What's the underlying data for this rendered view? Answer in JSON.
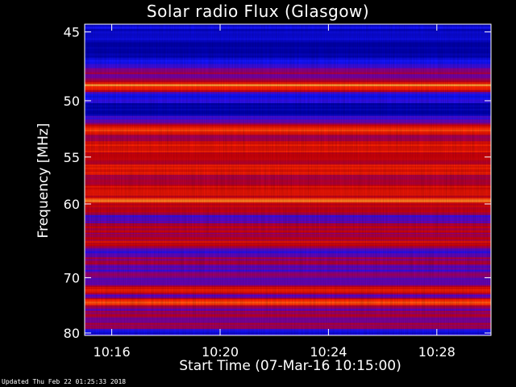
{
  "footer_text": "Updated Thu Feb 22 01:25:33 2018",
  "chart_data": {
    "type": "heatmap",
    "title": "Solar radio Flux (Glasgow)",
    "xlabel": "Start Time (07-Mar-16 10:15:00)",
    "ylabel": "Frequency [MHz]",
    "x_ticks": [
      "10:16",
      "10:20",
      "10:24",
      "10:28"
    ],
    "x_tick_minutes": [
      1,
      5,
      9,
      13
    ],
    "xlim_minutes": [
      0,
      15
    ],
    "y_ticks": [
      45,
      50,
      55,
      60,
      70,
      80
    ],
    "ylim": [
      44.5,
      80.5
    ],
    "y_scale": "reciprocal",
    "colormap": "blue-red-yellow-white",
    "colors": {
      "low": "#0000cc",
      "mid": "#cc0000",
      "high": "#ffffff"
    },
    "intensity_by_frequency_mhz": [
      {
        "f": 44.5,
        "v": 0.12
      },
      {
        "f": 45.0,
        "v": 0.08
      },
      {
        "f": 47.0,
        "v": 0.1
      },
      {
        "f": 48.5,
        "v": 0.55
      },
      {
        "f": 48.8,
        "v": 1.0
      },
      {
        "f": 49.0,
        "v": 0.6
      },
      {
        "f": 49.5,
        "v": 0.15
      },
      {
        "f": 51.0,
        "v": 0.1
      },
      {
        "f": 51.8,
        "v": 0.3
      },
      {
        "f": 52.5,
        "v": 0.8
      },
      {
        "f": 53.0,
        "v": 0.5
      },
      {
        "f": 53.5,
        "v": 0.55
      },
      {
        "f": 55.0,
        "v": 0.6
      },
      {
        "f": 57.0,
        "v": 0.55
      },
      {
        "f": 59.0,
        "v": 0.5
      },
      {
        "f": 59.6,
        "v": 0.92
      },
      {
        "f": 60.2,
        "v": 0.45
      },
      {
        "f": 62.0,
        "v": 0.35
      },
      {
        "f": 64.5,
        "v": 0.55
      },
      {
        "f": 66.0,
        "v": 0.3
      },
      {
        "f": 68.0,
        "v": 0.4
      },
      {
        "f": 70.0,
        "v": 0.3
      },
      {
        "f": 71.5,
        "v": 0.45
      },
      {
        "f": 72.3,
        "v": 0.62
      },
      {
        "f": 73.0,
        "v": 0.35
      },
      {
        "f": 74.2,
        "v": 0.72
      },
      {
        "f": 75.5,
        "v": 0.35
      },
      {
        "f": 77.5,
        "v": 0.42
      },
      {
        "f": 79.0,
        "v": 0.35
      },
      {
        "f": 80.5,
        "v": 0.15
      }
    ]
  }
}
